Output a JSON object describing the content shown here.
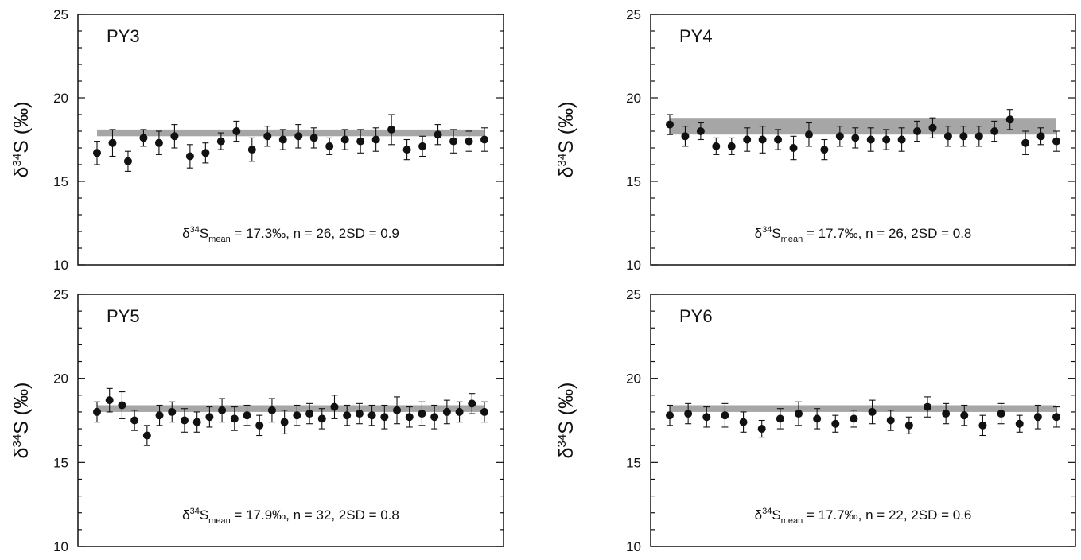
{
  "chart_data": [
    {
      "type": "scatter",
      "title": "PY3",
      "ylabel": {
        "delta": "δ",
        "iso": "34",
        "rest": "S (‰)"
      },
      "ylim": [
        10,
        25
      ],
      "yticks": [
        "10",
        "15",
        "20",
        "25"
      ],
      "annotation": {
        "delta": "δ",
        "iso": "34",
        "s": "S",
        "sub": "mean",
        "rest": " = 17.3‰, n = 26, 2SD = 0.9"
      },
      "band": {
        "low": 17.7,
        "high": 18.1
      },
      "series": [
        {
          "y": [
            16.7,
            17.3,
            16.2,
            17.6,
            17.3,
            17.7,
            16.5,
            16.7,
            17.4,
            18.0,
            16.9,
            17.7,
            17.5,
            17.7,
            17.6,
            17.1,
            17.5,
            17.4,
            17.5,
            18.1,
            16.9,
            17.1,
            17.8,
            17.4,
            17.4,
            17.5
          ],
          "err": [
            0.7,
            0.8,
            0.6,
            0.5,
            0.7,
            0.7,
            0.7,
            0.6,
            0.5,
            0.6,
            0.7,
            0.6,
            0.6,
            0.7,
            0.6,
            0.5,
            0.6,
            0.7,
            0.7,
            0.9,
            0.6,
            0.6,
            0.6,
            0.7,
            0.6,
            0.7
          ]
        }
      ]
    },
    {
      "type": "scatter",
      "title": "PY4",
      "ylabel": {
        "delta": "δ",
        "iso": "34",
        "rest": "S (‰)"
      },
      "ylim": [
        10,
        25
      ],
      "yticks": [
        "10",
        "15",
        "20",
        "25"
      ],
      "annotation": {
        "delta": "δ",
        "iso": "34",
        "s": "S",
        "sub": "mean",
        "rest": " = 17.7‰, n = 26, 2SD = 0.8"
      },
      "band": {
        "low": 17.8,
        "high": 18.8
      },
      "series": [
        {
          "y": [
            18.4,
            17.7,
            18.0,
            17.1,
            17.1,
            17.5,
            17.5,
            17.5,
            17.0,
            17.8,
            16.9,
            17.7,
            17.6,
            17.5,
            17.5,
            17.5,
            18.0,
            18.2,
            17.7,
            17.7,
            17.7,
            18.0,
            18.7,
            17.3,
            17.7,
            17.4
          ],
          "err": [
            0.6,
            0.6,
            0.5,
            0.5,
            0.5,
            0.7,
            0.8,
            0.6,
            0.7,
            0.7,
            0.6,
            0.6,
            0.6,
            0.7,
            0.6,
            0.7,
            0.6,
            0.6,
            0.6,
            0.6,
            0.6,
            0.6,
            0.6,
            0.7,
            0.5,
            0.6
          ]
        }
      ]
    },
    {
      "type": "scatter",
      "title": "PY5",
      "ylabel": {
        "delta": "δ",
        "iso": "34",
        "rest": "S (‰)"
      },
      "ylim": [
        10,
        25
      ],
      "yticks": [
        "10",
        "15",
        "20",
        "25"
      ],
      "annotation": {
        "delta": "δ",
        "iso": "34",
        "s": "S",
        "sub": "mean",
        "rest": " = 17.9‰, n = 32, 2SD = 0.8"
      },
      "band": {
        "low": 18.0,
        "high": 18.4
      },
      "series": [
        {
          "y": [
            18.0,
            18.7,
            18.4,
            17.5,
            16.6,
            17.8,
            18.0,
            17.5,
            17.4,
            17.7,
            18.1,
            17.6,
            17.8,
            17.2,
            18.1,
            17.4,
            17.8,
            17.9,
            17.6,
            18.3,
            17.8,
            17.9,
            17.8,
            17.7,
            18.1,
            17.7,
            17.9,
            17.7,
            18.0,
            18.0,
            18.5,
            18.0
          ],
          "err": [
            0.6,
            0.7,
            0.8,
            0.6,
            0.6,
            0.6,
            0.6,
            0.7,
            0.6,
            0.6,
            0.7,
            0.7,
            0.6,
            0.6,
            0.7,
            0.7,
            0.6,
            0.6,
            0.6,
            0.7,
            0.6,
            0.6,
            0.6,
            0.7,
            0.8,
            0.6,
            0.7,
            0.7,
            0.7,
            0.6,
            0.6,
            0.6
          ]
        }
      ]
    },
    {
      "type": "scatter",
      "title": "PY6",
      "ylabel": {
        "delta": "δ",
        "iso": "34",
        "rest": "S (‰)"
      },
      "ylim": [
        10,
        25
      ],
      "yticks": [
        "10",
        "15",
        "20",
        "25"
      ],
      "annotation": {
        "delta": "δ",
        "iso": "34",
        "s": "S",
        "sub": "mean",
        "rest": " = 17.7‰, n = 22, 2SD = 0.6"
      },
      "band": {
        "low": 18.0,
        "high": 18.4
      },
      "series": [
        {
          "y": [
            17.8,
            17.9,
            17.7,
            17.8,
            17.4,
            17.0,
            17.6,
            17.9,
            17.6,
            17.3,
            17.6,
            18.0,
            17.5,
            17.2,
            18.3,
            17.9,
            17.8,
            17.2,
            17.9,
            17.3,
            17.7,
            17.7
          ],
          "err": [
            0.6,
            0.6,
            0.6,
            0.7,
            0.6,
            0.5,
            0.6,
            0.7,
            0.6,
            0.5,
            0.5,
            0.7,
            0.6,
            0.5,
            0.6,
            0.6,
            0.6,
            0.6,
            0.6,
            0.5,
            0.7,
            0.6
          ]
        }
      ]
    }
  ]
}
